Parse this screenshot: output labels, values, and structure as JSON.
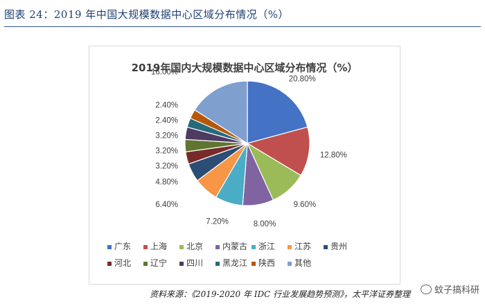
{
  "figure": {
    "title": "图表 24：2019 年中国大规模数据中心区域分布情况（%）",
    "source": "资料来源：《2019-2020 年 IDC 行业发展趋势预测》，太平洋证券整理",
    "watermark": "蚊子搞科研"
  },
  "chart_data": {
    "type": "pie",
    "title": "2019年国内大规模数据中心区域分布情况（%）",
    "categories": [
      "广东",
      "上海",
      "北京",
      "内蒙古",
      "浙江",
      "江苏",
      "贵州",
      "河北",
      "辽宁",
      "四川",
      "黑龙江",
      "陕西",
      "其他"
    ],
    "values": [
      20.8,
      12.8,
      9.6,
      8.0,
      7.2,
      6.4,
      4.8,
      3.2,
      3.2,
      3.2,
      2.4,
      2.4,
      16.0
    ],
    "labels": [
      "20.80%",
      "12.80%",
      "9.60%",
      "8.00%",
      "7.20%",
      "6.40%",
      "4.80%",
      "3.20%",
      "3.20%",
      "3.20%",
      "2.40%",
      "2.40%",
      "16.00%"
    ],
    "colors": [
      "#4472c4",
      "#c0504d",
      "#9bbb59",
      "#8064a2",
      "#4bacc6",
      "#f79646",
      "#2c4d75",
      "#772c2a",
      "#5f7530",
      "#4d3b62",
      "#276a7c",
      "#b65708",
      "#7f9fcf"
    ],
    "legend_position": "bottom"
  }
}
